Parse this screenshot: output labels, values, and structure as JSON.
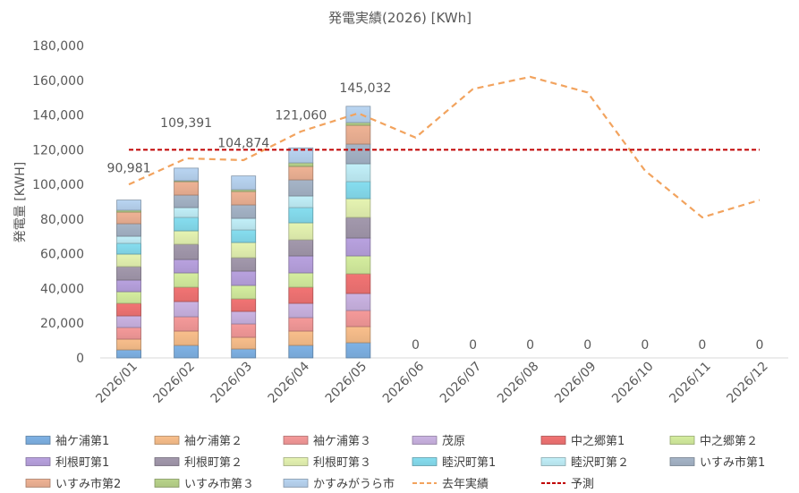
{
  "chart_data": {
    "type": "bar",
    "stacked": true,
    "title": "発電実績(2026) [KWh]",
    "xlabel": "",
    "ylabel": "発電量 [KWH]",
    "ylim": [
      0,
      180000
    ],
    "yticks": [
      0,
      20000,
      40000,
      60000,
      80000,
      100000,
      120000,
      140000,
      160000,
      180000
    ],
    "grid": false,
    "legend_position": "bottom",
    "categories": [
      "2026/01",
      "2026/02",
      "2026/03",
      "2026/04",
      "2026/05",
      "2026/06",
      "2026/07",
      "2026/08",
      "2026/09",
      "2026/10",
      "2026/11",
      "2026/12"
    ],
    "totals": [
      90981,
      109391,
      104874,
      121060,
      145032,
      0,
      0,
      0,
      0,
      0,
      0,
      0
    ],
    "series": [
      {
        "name": "袖ケ浦第1",
        "color": "#7fb2e5",
        "values": [
          4642,
          7221,
          5158,
          7221,
          8768,
          0,
          0,
          0,
          0,
          0,
          0,
          0
        ]
      },
      {
        "name": "袖ケ浦第２",
        "color": "#f9bf8c",
        "values": [
          6189,
          8252,
          6705,
          8252,
          9284,
          0,
          0,
          0,
          0,
          0,
          0,
          0
        ]
      },
      {
        "name": "袖ケ浦第３",
        "color": "#f59a9a",
        "values": [
          6705,
          8252,
          7736,
          7736,
          9284,
          0,
          0,
          0,
          0,
          0,
          0,
          0
        ]
      },
      {
        "name": "茂原",
        "color": "#cbb4e3",
        "values": [
          6705,
          8768,
          7221,
          8252,
          9799,
          0,
          0,
          0,
          0,
          0,
          0,
          0
        ]
      },
      {
        "name": "中之郷第1",
        "color": "#f27474",
        "values": [
          7221,
          8252,
          7221,
          9284,
          11347,
          0,
          0,
          0,
          0,
          0,
          0,
          0
        ]
      },
      {
        "name": "中之郷第２",
        "color": "#d5ee9f",
        "values": [
          6705,
          8252,
          7736,
          8252,
          10315,
          0,
          0,
          0,
          0,
          0,
          0,
          0
        ]
      },
      {
        "name": "利根町第1",
        "color": "#b9a2e0",
        "values": [
          6705,
          7736,
          8252,
          9799,
          10315,
          0,
          0,
          0,
          0,
          0,
          0,
          0
        ]
      },
      {
        "name": "利根町第２",
        "color": "#a399ad",
        "values": [
          7736,
          8768,
          7736,
          9284,
          11862,
          0,
          0,
          0,
          0,
          0,
          0,
          0
        ]
      },
      {
        "name": "利根町第３",
        "color": "#e6f4b2",
        "values": [
          7221,
          7736,
          8768,
          9799,
          10831,
          0,
          0,
          0,
          0,
          0,
          0,
          0
        ]
      },
      {
        "name": "睦沢町第1",
        "color": "#86def0",
        "values": [
          6189,
          7736,
          7221,
          8768,
          9799,
          0,
          0,
          0,
          0,
          0,
          0,
          0
        ]
      },
      {
        "name": "睦沢町第２",
        "color": "#c2f0f9",
        "values": [
          4126,
          5673,
          6705,
          6705,
          10315,
          0,
          0,
          0,
          0,
          0,
          0,
          0
        ]
      },
      {
        "name": "いすみ市第1",
        "color": "#a6b5c8",
        "values": [
          7221,
          7221,
          7736,
          9284,
          11347,
          0,
          0,
          0,
          0,
          0,
          0,
          0
        ]
      },
      {
        "name": "いすみ市第2",
        "color": "#efb395",
        "values": [
          6705,
          7736,
          7736,
          7736,
          10831,
          0,
          0,
          0,
          0,
          0,
          0,
          0
        ]
      },
      {
        "name": "いすみ市第３",
        "color": "#b9d48b",
        "values": [
          1032,
          516,
          1032,
          2063,
          1547,
          0,
          0,
          0,
          0,
          0,
          0,
          0
        ]
      },
      {
        "name": "かすみがうら市",
        "color": "#b9d5f2",
        "values": [
          5879,
          7272,
          7911,
          8625,
          9388,
          0,
          0,
          0,
          0,
          0,
          0,
          0
        ]
      }
    ],
    "lines": [
      {
        "name": "去年実績",
        "color": "#f2a35e",
        "style": "dashed",
        "values": [
          100000,
          115000,
          114000,
          130500,
          141000,
          127000,
          155000,
          162000,
          153000,
          108000,
          81000,
          91000
        ]
      },
      {
        "name": "予測",
        "color": "#c00000",
        "style": "dashed",
        "values": [
          120000,
          120000,
          120000,
          120000,
          120000,
          120000,
          120000,
          120000,
          120000,
          120000,
          120000,
          120000
        ]
      }
    ]
  }
}
